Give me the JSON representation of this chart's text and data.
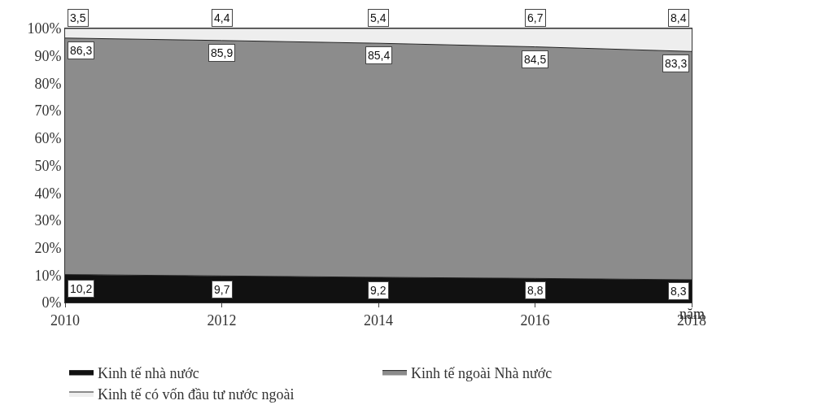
{
  "chart_data": {
    "type": "area",
    "stacked": true,
    "xlabel": "năm",
    "x": [
      2010,
      2012,
      2014,
      2016,
      2018
    ],
    "series": [
      {
        "name": "Kinh tế nhà nước",
        "color": "#111111",
        "values": [
          10.2,
          9.7,
          9.2,
          8.8,
          8.3
        ],
        "value_labels": [
          "10,2",
          "9,7",
          "9,2",
          "8,8",
          "8,3"
        ]
      },
      {
        "name": "Kinh tế ngoài Nhà nước",
        "color": "#8c8c8c",
        "values": [
          86.3,
          85.9,
          85.4,
          84.5,
          83.3
        ],
        "value_labels": [
          "86,3",
          "85,9",
          "85,4",
          "84,5",
          "83,3"
        ]
      },
      {
        "name": "Kinh tế có vốn đầu tư nước ngoài",
        "color": "#eeeeee",
        "values": [
          3.5,
          4.4,
          5.4,
          6.7,
          8.4
        ],
        "value_labels": [
          "3,5",
          "4,4",
          "5,4",
          "6,7",
          "8,4"
        ]
      }
    ],
    "xlim": [
      2010,
      2018
    ],
    "xticks": [
      2010,
      2012,
      2014,
      2016,
      2018
    ],
    "ylim": [
      0,
      100
    ],
    "yticks": [
      {
        "value": 0,
        "label": "0%"
      },
      {
        "value": 10,
        "label": "10%"
      },
      {
        "value": 20,
        "label": "20%"
      },
      {
        "value": 30,
        "label": "30%"
      },
      {
        "value": 40,
        "label": "40%"
      },
      {
        "value": 50,
        "label": "50%"
      },
      {
        "value": 60,
        "label": "60%"
      },
      {
        "value": 70,
        "label": "70%"
      },
      {
        "value": 80,
        "label": "80%"
      },
      {
        "value": 90,
        "label": "90%"
      },
      {
        "value": 100,
        "label": "100%"
      }
    ],
    "legend": "bottom"
  }
}
